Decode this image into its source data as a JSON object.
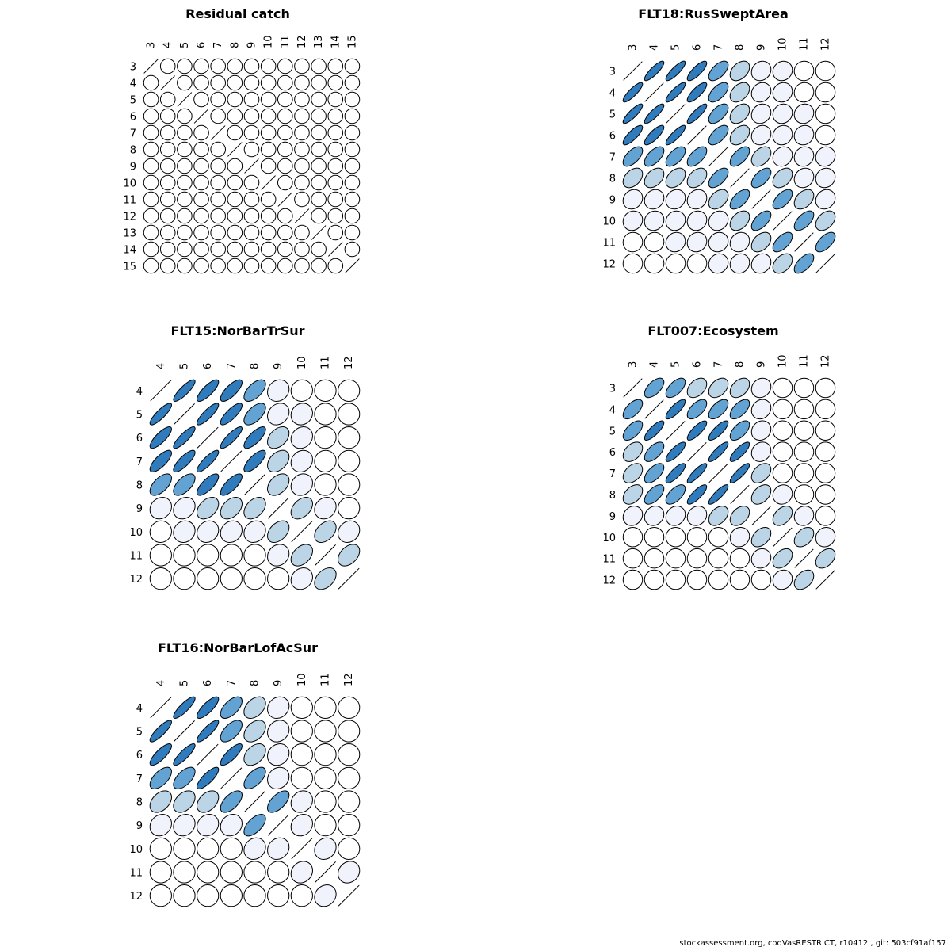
{
  "footer": "stockassessment.org, codVasRESTRICT, r10412 , git: 503cf91af157",
  "color_scale": {
    "very_weak": "#f0f3fc",
    "weak": "#bcd5e6",
    "medium": "#62a3d4",
    "strong": "#2f7bbc",
    "outline": "#000000"
  },
  "chart_data": [
    {
      "type": "heatmap",
      "subtype": "correlation-ellipse-matrix",
      "title": "Residual catch",
      "ages": [
        "3",
        "4",
        "5",
        "6",
        "7",
        "8",
        "9",
        "10",
        "11",
        "12",
        "13",
        "14",
        "15"
      ],
      "default_corr": 0,
      "pairs": []
    },
    {
      "type": "heatmap",
      "subtype": "correlation-ellipse-matrix",
      "title": "FLT18:RusSweptArea",
      "ages": [
        "3",
        "4",
        "5",
        "6",
        "7",
        "8",
        "9",
        "10",
        "11",
        "12"
      ],
      "default_corr": 0,
      "pairs": [
        [
          3,
          4,
          0.85
        ],
        [
          3,
          5,
          0.85
        ],
        [
          3,
          6,
          0.8
        ],
        [
          3,
          7,
          0.6
        ],
        [
          3,
          8,
          0.4
        ],
        [
          3,
          9,
          0.15
        ],
        [
          3,
          10,
          0.1
        ],
        [
          3,
          11,
          0.03
        ],
        [
          3,
          12,
          0.0
        ],
        [
          4,
          5,
          0.85
        ],
        [
          4,
          6,
          0.8
        ],
        [
          4,
          7,
          0.6
        ],
        [
          4,
          8,
          0.4
        ],
        [
          4,
          9,
          0.15
        ],
        [
          4,
          10,
          0.1
        ],
        [
          4,
          11,
          0.05
        ],
        [
          4,
          12,
          0.02
        ],
        [
          5,
          6,
          0.85
        ],
        [
          5,
          7,
          0.6
        ],
        [
          5,
          8,
          0.4
        ],
        [
          5,
          9,
          0.15
        ],
        [
          5,
          10,
          0.1
        ],
        [
          5,
          11,
          0.1
        ],
        [
          5,
          12,
          0.02
        ],
        [
          6,
          7,
          0.6
        ],
        [
          6,
          8,
          0.4
        ],
        [
          6,
          9,
          0.15
        ],
        [
          6,
          10,
          0.1
        ],
        [
          6,
          11,
          0.1
        ],
        [
          6,
          12,
          0.02
        ],
        [
          7,
          8,
          0.6
        ],
        [
          7,
          9,
          0.4
        ],
        [
          7,
          10,
          0.15
        ],
        [
          7,
          11,
          0.1
        ],
        [
          7,
          12,
          0.1
        ],
        [
          8,
          9,
          0.6
        ],
        [
          8,
          10,
          0.4
        ],
        [
          8,
          11,
          0.15
        ],
        [
          8,
          12,
          0.1
        ],
        [
          9,
          10,
          0.6
        ],
        [
          9,
          11,
          0.4
        ],
        [
          9,
          12,
          0.15
        ],
        [
          10,
          11,
          0.6
        ],
        [
          10,
          12,
          0.4
        ],
        [
          11,
          12,
          0.6
        ]
      ]
    },
    {
      "type": "heatmap",
      "subtype": "correlation-ellipse-matrix",
      "title": "FLT15:NorBarTrSur",
      "ages": [
        "4",
        "5",
        "6",
        "7",
        "8",
        "9",
        "10",
        "11",
        "12"
      ],
      "default_corr": 0,
      "pairs": [
        [
          4,
          5,
          0.85
        ],
        [
          4,
          6,
          0.8
        ],
        [
          4,
          7,
          0.75
        ],
        [
          4,
          8,
          0.6
        ],
        [
          4,
          9,
          0.15
        ],
        [
          4,
          10,
          0.03
        ],
        [
          4,
          11,
          0.0
        ],
        [
          4,
          12,
          0.0
        ],
        [
          5,
          6,
          0.85
        ],
        [
          5,
          7,
          0.8
        ],
        [
          5,
          8,
          0.6
        ],
        [
          5,
          9,
          0.2
        ],
        [
          5,
          10,
          0.1
        ],
        [
          5,
          11,
          0.0
        ],
        [
          5,
          12,
          0.0
        ],
        [
          6,
          7,
          0.85
        ],
        [
          6,
          8,
          0.75
        ],
        [
          6,
          9,
          0.4
        ],
        [
          6,
          10,
          0.15
        ],
        [
          6,
          11,
          0.03
        ],
        [
          6,
          12,
          0.0
        ],
        [
          7,
          8,
          0.75
        ],
        [
          7,
          9,
          0.4
        ],
        [
          7,
          10,
          0.15
        ],
        [
          7,
          11,
          0.03
        ],
        [
          7,
          12,
          0.0
        ],
        [
          8,
          9,
          0.4
        ],
        [
          8,
          10,
          0.15
        ],
        [
          8,
          11,
          0.02
        ],
        [
          8,
          12,
          0.0
        ],
        [
          9,
          10,
          0.4
        ],
        [
          9,
          11,
          0.15
        ],
        [
          9,
          12,
          0.02
        ],
        [
          10,
          11,
          0.4
        ],
        [
          10,
          12,
          0.15
        ],
        [
          11,
          12,
          0.4
        ]
      ]
    },
    {
      "type": "heatmap",
      "subtype": "correlation-ellipse-matrix",
      "title": "FLT007:Ecosystem",
      "ages": [
        "3",
        "4",
        "5",
        "6",
        "7",
        "8",
        "9",
        "10",
        "11",
        "12"
      ],
      "default_corr": 0,
      "pairs": [
        [
          3,
          4,
          0.6
        ],
        [
          3,
          5,
          0.6
        ],
        [
          3,
          6,
          0.4
        ],
        [
          3,
          7,
          0.4
        ],
        [
          3,
          8,
          0.4
        ],
        [
          3,
          9,
          0.15
        ],
        [
          3,
          10,
          0.0
        ],
        [
          3,
          11,
          0.0
        ],
        [
          3,
          12,
          0.0
        ],
        [
          4,
          5,
          0.8
        ],
        [
          4,
          6,
          0.6
        ],
        [
          4,
          7,
          0.6
        ],
        [
          4,
          8,
          0.6
        ],
        [
          4,
          9,
          0.15
        ],
        [
          4,
          10,
          0.0
        ],
        [
          4,
          11,
          0.0
        ],
        [
          4,
          12,
          0.0
        ],
        [
          5,
          6,
          0.8
        ],
        [
          5,
          7,
          0.8
        ],
        [
          5,
          8,
          0.6
        ],
        [
          5,
          9,
          0.15
        ],
        [
          5,
          10,
          0.0
        ],
        [
          5,
          11,
          0.0
        ],
        [
          5,
          12,
          0.0
        ],
        [
          6,
          7,
          0.85
        ],
        [
          6,
          8,
          0.8
        ],
        [
          6,
          9,
          0.15
        ],
        [
          6,
          10,
          0.0
        ],
        [
          6,
          11,
          0.0
        ],
        [
          6,
          12,
          0.0
        ],
        [
          7,
          8,
          0.85
        ],
        [
          7,
          9,
          0.4
        ],
        [
          7,
          10,
          0.0
        ],
        [
          7,
          11,
          0.0
        ],
        [
          7,
          12,
          0.0
        ],
        [
          8,
          9,
          0.4
        ],
        [
          8,
          10,
          0.1
        ],
        [
          8,
          11,
          0.0
        ],
        [
          8,
          12,
          0.0
        ],
        [
          9,
          10,
          0.4
        ],
        [
          9,
          11,
          0.1
        ],
        [
          9,
          12,
          0.0
        ],
        [
          10,
          11,
          0.4
        ],
        [
          10,
          12,
          0.1
        ],
        [
          11,
          12,
          0.4
        ]
      ]
    },
    {
      "type": "heatmap",
      "subtype": "correlation-ellipse-matrix",
      "title": "FLT16:NorBarLofAcSur",
      "ages": [
        "4",
        "5",
        "6",
        "7",
        "8",
        "9",
        "10",
        "11",
        "12"
      ],
      "default_corr": 0,
      "pairs": [
        [
          4,
          5,
          0.85
        ],
        [
          4,
          6,
          0.8
        ],
        [
          4,
          7,
          0.6
        ],
        [
          4,
          8,
          0.4
        ],
        [
          4,
          9,
          0.15
        ],
        [
          4,
          10,
          0.0
        ],
        [
          4,
          11,
          0.0
        ],
        [
          4,
          12,
          0.0
        ],
        [
          5,
          6,
          0.85
        ],
        [
          5,
          7,
          0.6
        ],
        [
          5,
          8,
          0.4
        ],
        [
          5,
          9,
          0.15
        ],
        [
          5,
          10,
          0.0
        ],
        [
          5,
          11,
          0.0
        ],
        [
          5,
          12,
          0.0
        ],
        [
          6,
          7,
          0.8
        ],
        [
          6,
          8,
          0.4
        ],
        [
          6,
          9,
          0.15
        ],
        [
          6,
          10,
          0.0
        ],
        [
          6,
          11,
          0.0
        ],
        [
          6,
          12,
          0.0
        ],
        [
          7,
          8,
          0.6
        ],
        [
          7,
          9,
          0.15
        ],
        [
          7,
          10,
          0.02
        ],
        [
          7,
          11,
          0.0
        ],
        [
          7,
          12,
          0.0
        ],
        [
          8,
          9,
          0.6
        ],
        [
          8,
          10,
          0.15
        ],
        [
          8,
          11,
          0.0
        ],
        [
          8,
          12,
          0.0
        ],
        [
          9,
          10,
          0.15
        ],
        [
          9,
          11,
          0.0
        ],
        [
          9,
          12,
          0.0
        ],
        [
          10,
          11,
          0.15
        ],
        [
          10,
          12,
          0.0
        ],
        [
          11,
          12,
          0.15
        ]
      ]
    }
  ]
}
